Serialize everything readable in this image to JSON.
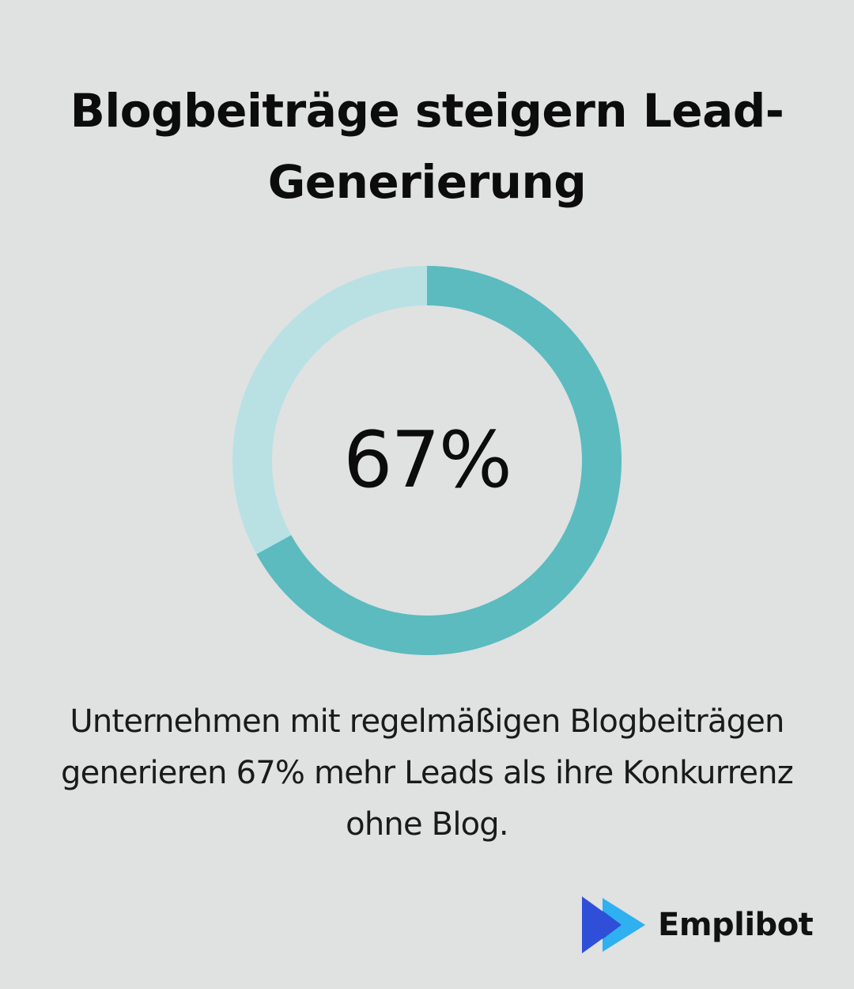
{
  "title": "Blogbeiträge steigern Lead-Generierung",
  "chart_data": {
    "type": "pie",
    "variant": "donut",
    "value": 67,
    "max": 100,
    "center_label": "67%",
    "colors": {
      "filled": "#5bbbbf",
      "remaining": "#b9e1e4"
    }
  },
  "caption": "Unternehmen mit regelmäßigen Blogbeiträgen generieren 67% mehr Leads als ihre Konkurrenz ohne Blog.",
  "brand": {
    "name": "Emplibot",
    "icon": "play-arrow-logo-icon",
    "colors": {
      "dark": "#2f4fd8",
      "light": "#2fb0f0"
    }
  },
  "background_color": "#e0e1e1"
}
